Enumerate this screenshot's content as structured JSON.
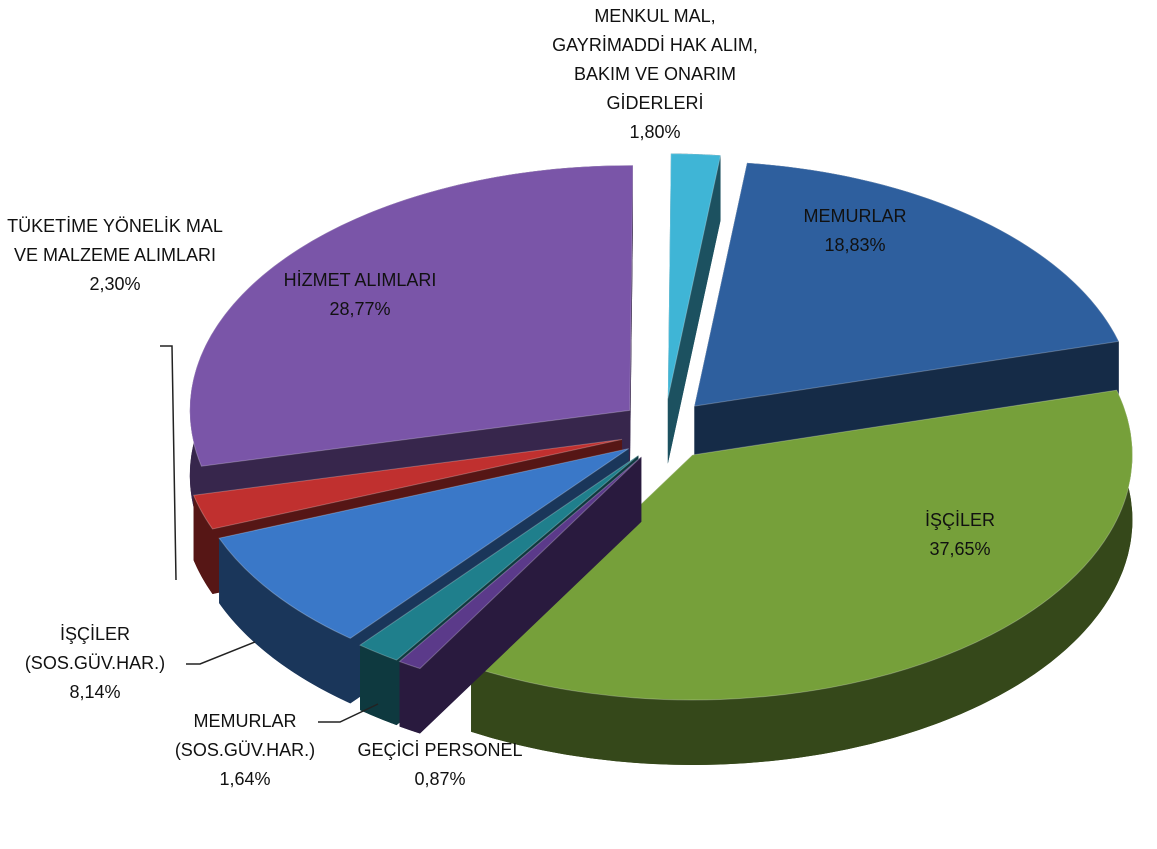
{
  "chart_data": {
    "type": "pie",
    "categories": [
      "MEMURLAR",
      "İŞÇİLER",
      "GEÇİCİ PERSONEL",
      "MEMURLAR (SOS.GÜV.HAR.)",
      "İŞÇİLER (SOS.GÜV.HAR.)",
      "TÜKETİME YÖNELİK MAL VE MALZEME ALIMLARI",
      "HİZMET ALIMLARI",
      "MENKUL MAL, GAYRİMADDİ HAK ALIM, BAKIM VE ONARIM GİDERLERİ"
    ],
    "values": [
      18.83,
      37.65,
      0.87,
      1.64,
      8.14,
      2.3,
      28.77,
      1.8
    ],
    "value_labels": [
      "18,83%",
      "37,65%",
      "0,87%",
      "1,64%",
      "8,14%",
      "2,30%",
      "28,77%",
      "1,80%"
    ],
    "colors": [
      "#2e5f9e",
      "#76a03a",
      "#5b3a8a",
      "#1f7f8c",
      "#3a78c8",
      "#c0302f",
      "#7a55a8",
      "#3fb5d6"
    ]
  }
}
